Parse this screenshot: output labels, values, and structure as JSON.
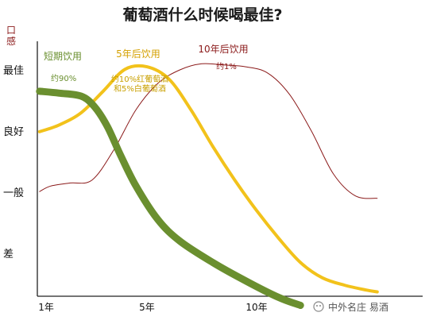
{
  "chart_data": {
    "type": "line",
    "title": "葡萄酒什么时候喝最佳?",
    "ylabel": "口感",
    "y_levels": [
      "最佳",
      "良好",
      "一般",
      "差"
    ],
    "x_ticks": [
      "1年",
      "5年",
      "10年"
    ],
    "series": [
      {
        "name": "短期饮用",
        "share": "约90%",
        "color": "#6a8f2f",
        "points": [
          [
            0.1,
            0.65
          ],
          [
            1.0,
            0.62
          ],
          [
            2.0,
            0.57
          ],
          [
            2.6,
            0.4
          ],
          [
            3.2,
            0.07
          ],
          [
            3.8,
            -0.4
          ],
          [
            4.5,
            -0.9
          ],
          [
            5.5,
            -1.45
          ],
          [
            6.5,
            -1.8
          ],
          [
            8.0,
            -2.15
          ],
          [
            9.5,
            -2.45
          ],
          [
            11.0,
            -2.72
          ],
          [
            12.0,
            -2.85
          ]
        ]
      },
      {
        "name": "5年后饮用",
        "share": "约10%红葡萄酒\n和5%白葡萄酒",
        "color": "#f2c21b",
        "points": [
          [
            0.1,
            -0.01
          ],
          [
            1.0,
            0.1
          ],
          [
            2.0,
            0.3
          ],
          [
            3.0,
            0.65
          ],
          [
            4.0,
            1.01
          ],
          [
            5.0,
            1.05
          ],
          [
            6.0,
            0.85
          ],
          [
            7.0,
            0.35
          ],
          [
            8.0,
            -0.25
          ],
          [
            9.0,
            -0.8
          ],
          [
            10.0,
            -1.3
          ],
          [
            11.0,
            -1.75
          ],
          [
            12.0,
            -2.15
          ],
          [
            13.0,
            -2.4
          ],
          [
            14.0,
            -2.52
          ],
          [
            15.0,
            -2.6
          ],
          [
            15.5,
            -2.63
          ]
        ]
      },
      {
        "name": "10年后饮用",
        "share": "约1%",
        "color": "#8b1a1a",
        "points": [
          [
            0.1,
            -0.99
          ],
          [
            0.6,
            -0.9
          ],
          [
            1.5,
            -0.85
          ],
          [
            2.5,
            -0.8
          ],
          [
            3.5,
            -0.3
          ],
          [
            4.5,
            0.35
          ],
          [
            5.5,
            0.78
          ],
          [
            6.5,
            1.0
          ],
          [
            7.5,
            1.1
          ],
          [
            8.5,
            1.08
          ],
          [
            9.5,
            1.05
          ],
          [
            10.5,
            0.95
          ],
          [
            11.5,
            0.6
          ],
          [
            12.5,
            0.0
          ],
          [
            13.5,
            -0.7
          ],
          [
            14.5,
            -1.06
          ],
          [
            15.5,
            -1.1
          ]
        ]
      }
    ],
    "grid": false,
    "watermark": "中外名庄 易酒"
  }
}
